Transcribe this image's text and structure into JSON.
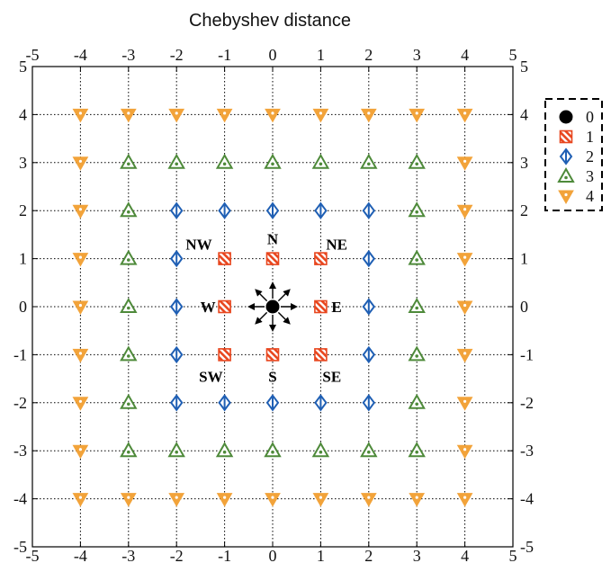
{
  "chart_data": {
    "type": "scatter",
    "title": "Chebyshev distance",
    "xlabel": "",
    "ylabel": "",
    "xlim": [
      -5,
      5
    ],
    "ylim": [
      -5,
      5
    ],
    "xticks": [
      "-5",
      "-4",
      "-3",
      "-2",
      "-1",
      "0",
      "1",
      "2",
      "3",
      "4",
      "5"
    ],
    "yticks": [
      "-5",
      "-4",
      "-3",
      "-2",
      "-1",
      "0",
      "1",
      "2",
      "3",
      "4",
      "5"
    ],
    "grid": "dotted",
    "legend_position": "outside-right",
    "series": [
      {
        "name": "0",
        "marker": "circle",
        "color": "#000000",
        "points": [
          [
            0,
            0
          ]
        ]
      },
      {
        "name": "1",
        "marker": "square-hatched",
        "color": "#e8461e",
        "points": [
          [
            -1,
            -1
          ],
          [
            0,
            -1
          ],
          [
            1,
            -1
          ],
          [
            -1,
            0
          ],
          [
            1,
            0
          ],
          [
            -1,
            1
          ],
          [
            0,
            1
          ],
          [
            1,
            1
          ]
        ]
      },
      {
        "name": "2",
        "marker": "diamond-split",
        "color": "#1f5fb4",
        "points": [
          [
            -2,
            -2
          ],
          [
            -1,
            -2
          ],
          [
            0,
            -2
          ],
          [
            1,
            -2
          ],
          [
            2,
            -2
          ],
          [
            -2,
            -1
          ],
          [
            2,
            -1
          ],
          [
            -2,
            0
          ],
          [
            2,
            0
          ],
          [
            -2,
            1
          ],
          [
            2,
            1
          ],
          [
            -2,
            2
          ],
          [
            -1,
            2
          ],
          [
            0,
            2
          ],
          [
            1,
            2
          ],
          [
            2,
            2
          ]
        ]
      },
      {
        "name": "3",
        "marker": "triangle-up",
        "color": "#4e8a3a",
        "points": [
          [
            -3,
            -3
          ],
          [
            -2,
            -3
          ],
          [
            -1,
            -3
          ],
          [
            0,
            -3
          ],
          [
            1,
            -3
          ],
          [
            2,
            -3
          ],
          [
            3,
            -3
          ],
          [
            -3,
            -2
          ],
          [
            3,
            -2
          ],
          [
            -3,
            -1
          ],
          [
            3,
            -1
          ],
          [
            -3,
            0
          ],
          [
            3,
            0
          ],
          [
            -3,
            1
          ],
          [
            3,
            1
          ],
          [
            -3,
            2
          ],
          [
            3,
            2
          ],
          [
            -3,
            3
          ],
          [
            -2,
            3
          ],
          [
            -1,
            3
          ],
          [
            0,
            3
          ],
          [
            1,
            3
          ],
          [
            2,
            3
          ],
          [
            3,
            3
          ]
        ]
      },
      {
        "name": "4",
        "marker": "triangle-down",
        "color": "#f2a33a",
        "points": [
          [
            -4,
            -4
          ],
          [
            -3,
            -4
          ],
          [
            -2,
            -4
          ],
          [
            -1,
            -4
          ],
          [
            0,
            -4
          ],
          [
            1,
            -4
          ],
          [
            2,
            -4
          ],
          [
            3,
            -4
          ],
          [
            4,
            -4
          ],
          [
            -4,
            -3
          ],
          [
            4,
            -3
          ],
          [
            -4,
            -2
          ],
          [
            4,
            -2
          ],
          [
            -4,
            -1
          ],
          [
            4,
            -1
          ],
          [
            -4,
            0
          ],
          [
            4,
            0
          ],
          [
            -4,
            1
          ],
          [
            4,
            1
          ],
          [
            -4,
            2
          ],
          [
            4,
            2
          ],
          [
            -4,
            3
          ],
          [
            4,
            3
          ],
          [
            -4,
            4
          ],
          [
            -3,
            4
          ],
          [
            -2,
            4
          ],
          [
            -1,
            4
          ],
          [
            0,
            4
          ],
          [
            1,
            4
          ],
          [
            2,
            4
          ],
          [
            3,
            4
          ],
          [
            4,
            4
          ]
        ]
      }
    ],
    "annotations": [
      {
        "text": "NW",
        "x": -1,
        "y": 1,
        "side": "upper-left"
      },
      {
        "text": "N",
        "x": 0,
        "y": 1,
        "side": "above"
      },
      {
        "text": "NE",
        "x": 1,
        "y": 1,
        "side": "upper-right"
      },
      {
        "text": "W",
        "x": -1,
        "y": 0,
        "side": "left"
      },
      {
        "text": "E",
        "x": 1,
        "y": 0,
        "side": "right"
      },
      {
        "text": "SW",
        "x": -1,
        "y": -1,
        "side": "lower-left"
      },
      {
        "text": "S",
        "x": 0,
        "y": -1,
        "side": "below"
      },
      {
        "text": "SE",
        "x": 1,
        "y": -1,
        "side": "lower-right"
      }
    ],
    "center_arrows": {
      "x": 0,
      "y": 0,
      "directions": [
        "N",
        "NE",
        "E",
        "SE",
        "S",
        "SW",
        "W",
        "NW"
      ]
    }
  }
}
